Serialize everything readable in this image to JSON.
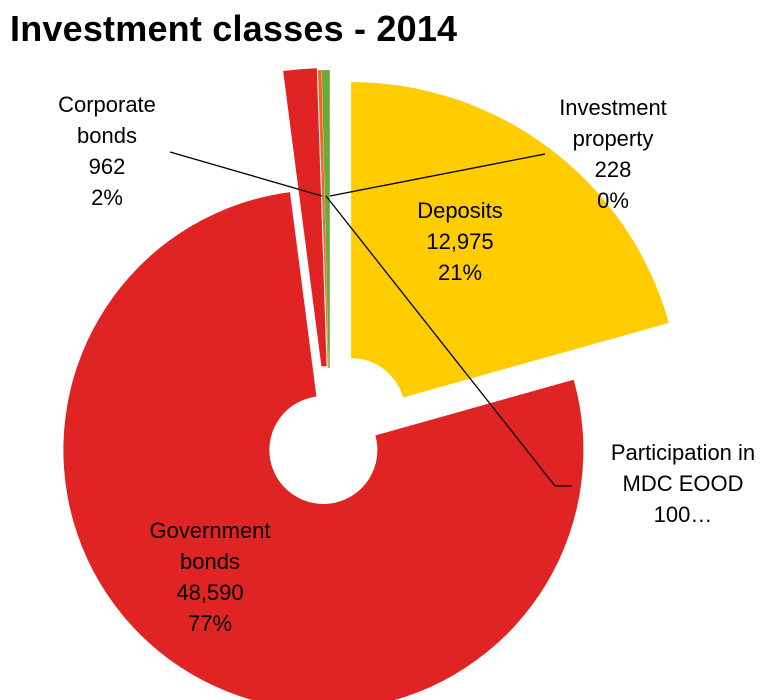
{
  "title": "Investment classes - 2014",
  "chart_data": {
    "type": "pie",
    "title": "Investment classes - 2014",
    "xlabel": "",
    "ylabel": "",
    "legend": "none",
    "categories": [
      "Deposits",
      "Government bonds",
      "Corporate bonds",
      "Participation in MDC EOOD",
      "Investment property"
    ],
    "values": [
      12975,
      48590,
      962,
      100,
      228
    ],
    "percent_labels": [
      "21%",
      "77%",
      "2%",
      "",
      "0%"
    ],
    "value_labels": [
      "12,975",
      "48,590",
      "962",
      "100…",
      "228"
    ],
    "colors": [
      "#FFCC00",
      "#E02424",
      "#E02424",
      "#F26522",
      "#6AAA3A"
    ],
    "label_lines": [
      [
        "Deposits",
        "12,975",
        "21%"
      ],
      [
        "Government",
        "bonds",
        "48,590",
        "77%"
      ],
      [
        "Corporate",
        "bonds",
        "962",
        "2%"
      ],
      [
        "Participation in",
        "MDC EOOD",
        "100…"
      ],
      [
        "Investment",
        "property",
        "228",
        "0%"
      ]
    ]
  }
}
